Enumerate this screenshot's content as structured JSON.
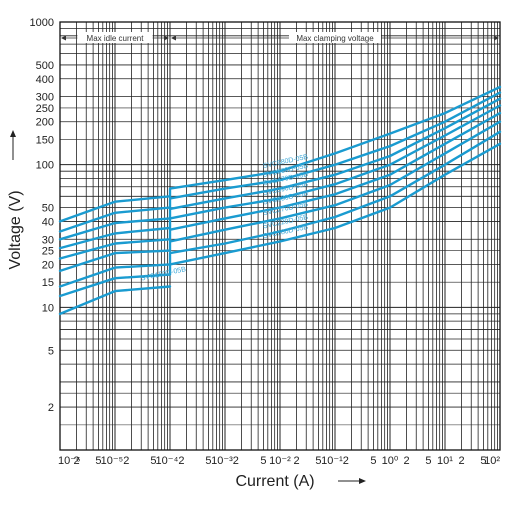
{
  "chart_data": {
    "type": "line",
    "title": "",
    "xlabel": "Current (A)",
    "ylabel": "Voltage (V)",
    "x_scale": "log",
    "y_scale": "log",
    "xlim": [
      1e-06,
      100
    ],
    "ylim": [
      1,
      1000
    ],
    "grid": true,
    "series_color": "#1a9bd0",
    "y_ticks": [
      "1000",
      "500",
      "400",
      "300",
      "250",
      "200",
      "150",
      "100",
      "50",
      "40",
      "30",
      "25",
      "20",
      "15",
      "10",
      "5",
      "2"
    ],
    "x_tick_labels": [
      "10⁻⁶",
      "2",
      "5",
      "10⁻⁵2",
      "5",
      "10⁻⁴2",
      "5",
      "10⁻³2",
      "5",
      "10⁻²",
      "2",
      "5",
      "10⁻¹2",
      "5",
      "10⁰",
      "2",
      "5",
      "10¹",
      "2",
      "5",
      "10²"
    ],
    "annotations": [
      {
        "text": "Max idle current",
        "x_from": 1e-06,
        "x_to": 0.0001
      },
      {
        "text": "Max clamping voltage",
        "x_from": 0.0001,
        "x_to": 100
      }
    ],
    "series": [
      {
        "name": "SVC680D-05B",
        "x": [
          1e-06,
          1e-05,
          0.0001,
          0.0001,
          0.001,
          0.01,
          0.1,
          1,
          10,
          100
        ],
        "y": [
          40,
          55,
          60,
          68,
          78,
          90,
          120,
          165,
          230,
          350
        ]
      },
      {
        "name": "SVC560D-05B",
        "x": [
          1e-06,
          1e-05,
          0.0001,
          0.0001,
          0.001,
          0.01,
          0.1,
          1,
          10,
          100
        ],
        "y": [
          34,
          46,
          50,
          58,
          68,
          78,
          100,
          135,
          200,
          320
        ]
      },
      {
        "name": "SVC470D-05B",
        "x": [
          1e-06,
          1e-05,
          0.0001,
          0.0001,
          0.001,
          0.01,
          0.1,
          1,
          10,
          100
        ],
        "y": [
          30,
          39,
          42,
          49,
          58,
          68,
          85,
          115,
          180,
          290
        ]
      },
      {
        "name": "SVC390D-05B",
        "x": [
          1e-06,
          1e-05,
          0.0001,
          0.0001,
          0.001,
          0.01,
          0.1,
          1,
          10,
          100
        ],
        "y": [
          26,
          33,
          36,
          42,
          50,
          58,
          73,
          100,
          160,
          260
        ]
      },
      {
        "name": "SVC330D-05B",
        "x": [
          1e-06,
          1e-05,
          0.0001,
          0.0001,
          0.001,
          0.01,
          0.1,
          1,
          10,
          100
        ],
        "y": [
          22,
          28,
          30,
          35,
          42,
          50,
          62,
          85,
          140,
          230
        ]
      },
      {
        "name": "SVC270D-05B",
        "x": [
          1e-06,
          1e-05,
          0.0001,
          0.0001,
          0.001,
          0.01,
          0.1,
          1,
          10,
          100
        ],
        "y": [
          18,
          24,
          25,
          29,
          35,
          42,
          52,
          72,
          120,
          200
        ]
      },
      {
        "name": "SVC220D-05B",
        "x": [
          1e-06,
          1e-05,
          0.0001,
          0.0001,
          0.001,
          0.01,
          0.1,
          1,
          10,
          100
        ],
        "y": [
          14,
          19,
          20,
          24,
          28,
          34,
          43,
          60,
          100,
          170
        ]
      },
      {
        "name": "SVC180D-05B",
        "x": [
          1e-06,
          1e-05,
          0.0001,
          0.0001,
          0.001,
          0.01,
          0.1,
          1,
          10,
          100
        ],
        "y": [
          12,
          16,
          17,
          20,
          24,
          29,
          36,
          50,
          85,
          140
        ]
      },
      {
        "name": "SVC150D-05B",
        "x": [
          1e-06,
          1e-05,
          0.0001
        ],
        "y": [
          9,
          13,
          14
        ]
      }
    ]
  }
}
